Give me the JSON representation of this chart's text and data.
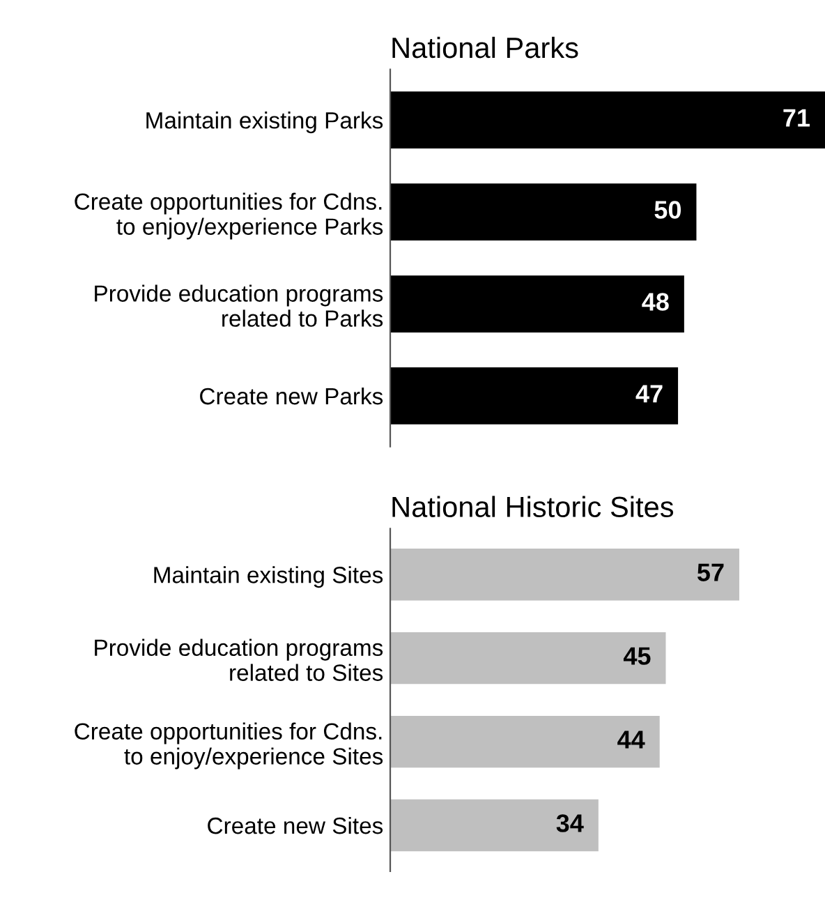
{
  "chart_data": [
    {
      "type": "bar",
      "orientation": "horizontal",
      "title": "National Parks",
      "categories": [
        "Maintain existing Parks",
        "Create opportunities for Cdns.\nto enjoy/experience Parks",
        "Provide education programs\nrelated to Parks",
        "Create new Parks"
      ],
      "values": [
        71,
        50,
        48,
        47
      ],
      "color": "#000000",
      "data_labels": true,
      "tick_labels": "y",
      "grid": false
    },
    {
      "type": "bar",
      "orientation": "horizontal",
      "title": "National Historic Sites",
      "categories": [
        "Maintain existing Sites",
        "Provide education programs\nrelated to Sites",
        "Create opportunities for Cdns.\nto enjoy/experience Sites",
        "Create new Sites"
      ],
      "values": [
        57,
        45,
        44,
        34
      ],
      "color": "#bfbfbf",
      "data_labels": true,
      "tick_labels": "y",
      "grid": false
    }
  ]
}
